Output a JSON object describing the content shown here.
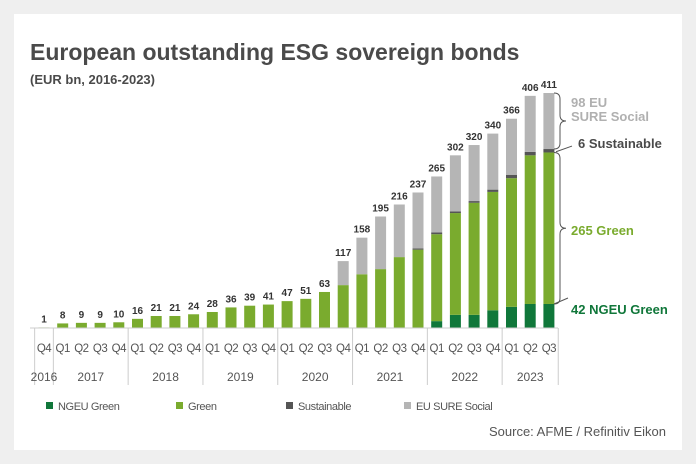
{
  "chart_data": {
    "type": "bar",
    "stacked": true,
    "title": "European outstanding ESG sovereign bonds",
    "subtitle": "(EUR bn, 2016-2023)",
    "source": "Source: AFME / Refinitiv Eikon",
    "quarters": [
      "Q4",
      "Q1",
      "Q2",
      "Q3",
      "Q4",
      "Q1",
      "Q2",
      "Q3",
      "Q4",
      "Q1",
      "Q2",
      "Q3",
      "Q4",
      "Q1",
      "Q2",
      "Q3",
      "Q4",
      "Q1",
      "Q2",
      "Q3",
      "Q4",
      "Q1",
      "Q2",
      "Q3",
      "Q4",
      "Q1",
      "Q2",
      "Q3"
    ],
    "years": [
      {
        "label": "2016",
        "count": 1
      },
      {
        "label": "2017",
        "count": 4
      },
      {
        "label": "2018",
        "count": 4
      },
      {
        "label": "2019",
        "count": 4
      },
      {
        "label": "2020",
        "count": 4
      },
      {
        "label": "2021",
        "count": 4
      },
      {
        "label": "2022",
        "count": 4
      },
      {
        "label": "2023",
        "count": 3
      }
    ],
    "totals": [
      1,
      8,
      9,
      9,
      10,
      16,
      21,
      21,
      24,
      28,
      36,
      39,
      41,
      47,
      51,
      63,
      117,
      158,
      195,
      216,
      237,
      265,
      302,
      320,
      340,
      366,
      406,
      411
    ],
    "series": [
      {
        "name": "NGEU Green",
        "color": "#10773a",
        "values": [
          0,
          0,
          0,
          0,
          0,
          0,
          0,
          0,
          0,
          0,
          0,
          0,
          0,
          0,
          0,
          0,
          0,
          0,
          0,
          0,
          0,
          12,
          23,
          23,
          31,
          37,
          42,
          42
        ]
      },
      {
        "name": "Green",
        "color": "#7aab2e",
        "values": [
          1,
          8,
          9,
          9,
          10,
          16,
          21,
          21,
          24,
          28,
          36,
          39,
          41,
          47,
          51,
          63,
          75,
          94,
          103,
          124,
          137,
          152,
          178,
          196,
          207,
          225,
          260,
          265
        ]
      },
      {
        "name": "Sustainable",
        "color": "#555555",
        "values": [
          0,
          0,
          0,
          0,
          0,
          0,
          0,
          0,
          0,
          0,
          0,
          0,
          0,
          0,
          0,
          0,
          0,
          0,
          0,
          0,
          2,
          3,
          3,
          3,
          4,
          6,
          6,
          6
        ]
      },
      {
        "name": "EU SURE Social",
        "color": "#b5b5b5",
        "values": [
          0,
          0,
          0,
          0,
          0,
          0,
          0,
          0,
          0,
          0,
          0,
          0,
          0,
          0,
          0,
          0,
          42,
          64,
          92,
          92,
          98,
          98,
          98,
          98,
          98,
          98,
          98,
          98
        ]
      }
    ],
    "annotations": [
      {
        "line1": "98 EU",
        "line2": "SURE Social",
        "color": "#b0b0b0"
      },
      {
        "line1": "6 Sustainable",
        "color": "#4a4a4a"
      },
      {
        "line1": "265 Green",
        "color": "#7aab2e"
      },
      {
        "line1": "42 NGEU Green",
        "color": "#10773a"
      }
    ],
    "ylim": [
      0,
      420
    ],
    "grid": false,
    "legend_position": "bottom"
  }
}
